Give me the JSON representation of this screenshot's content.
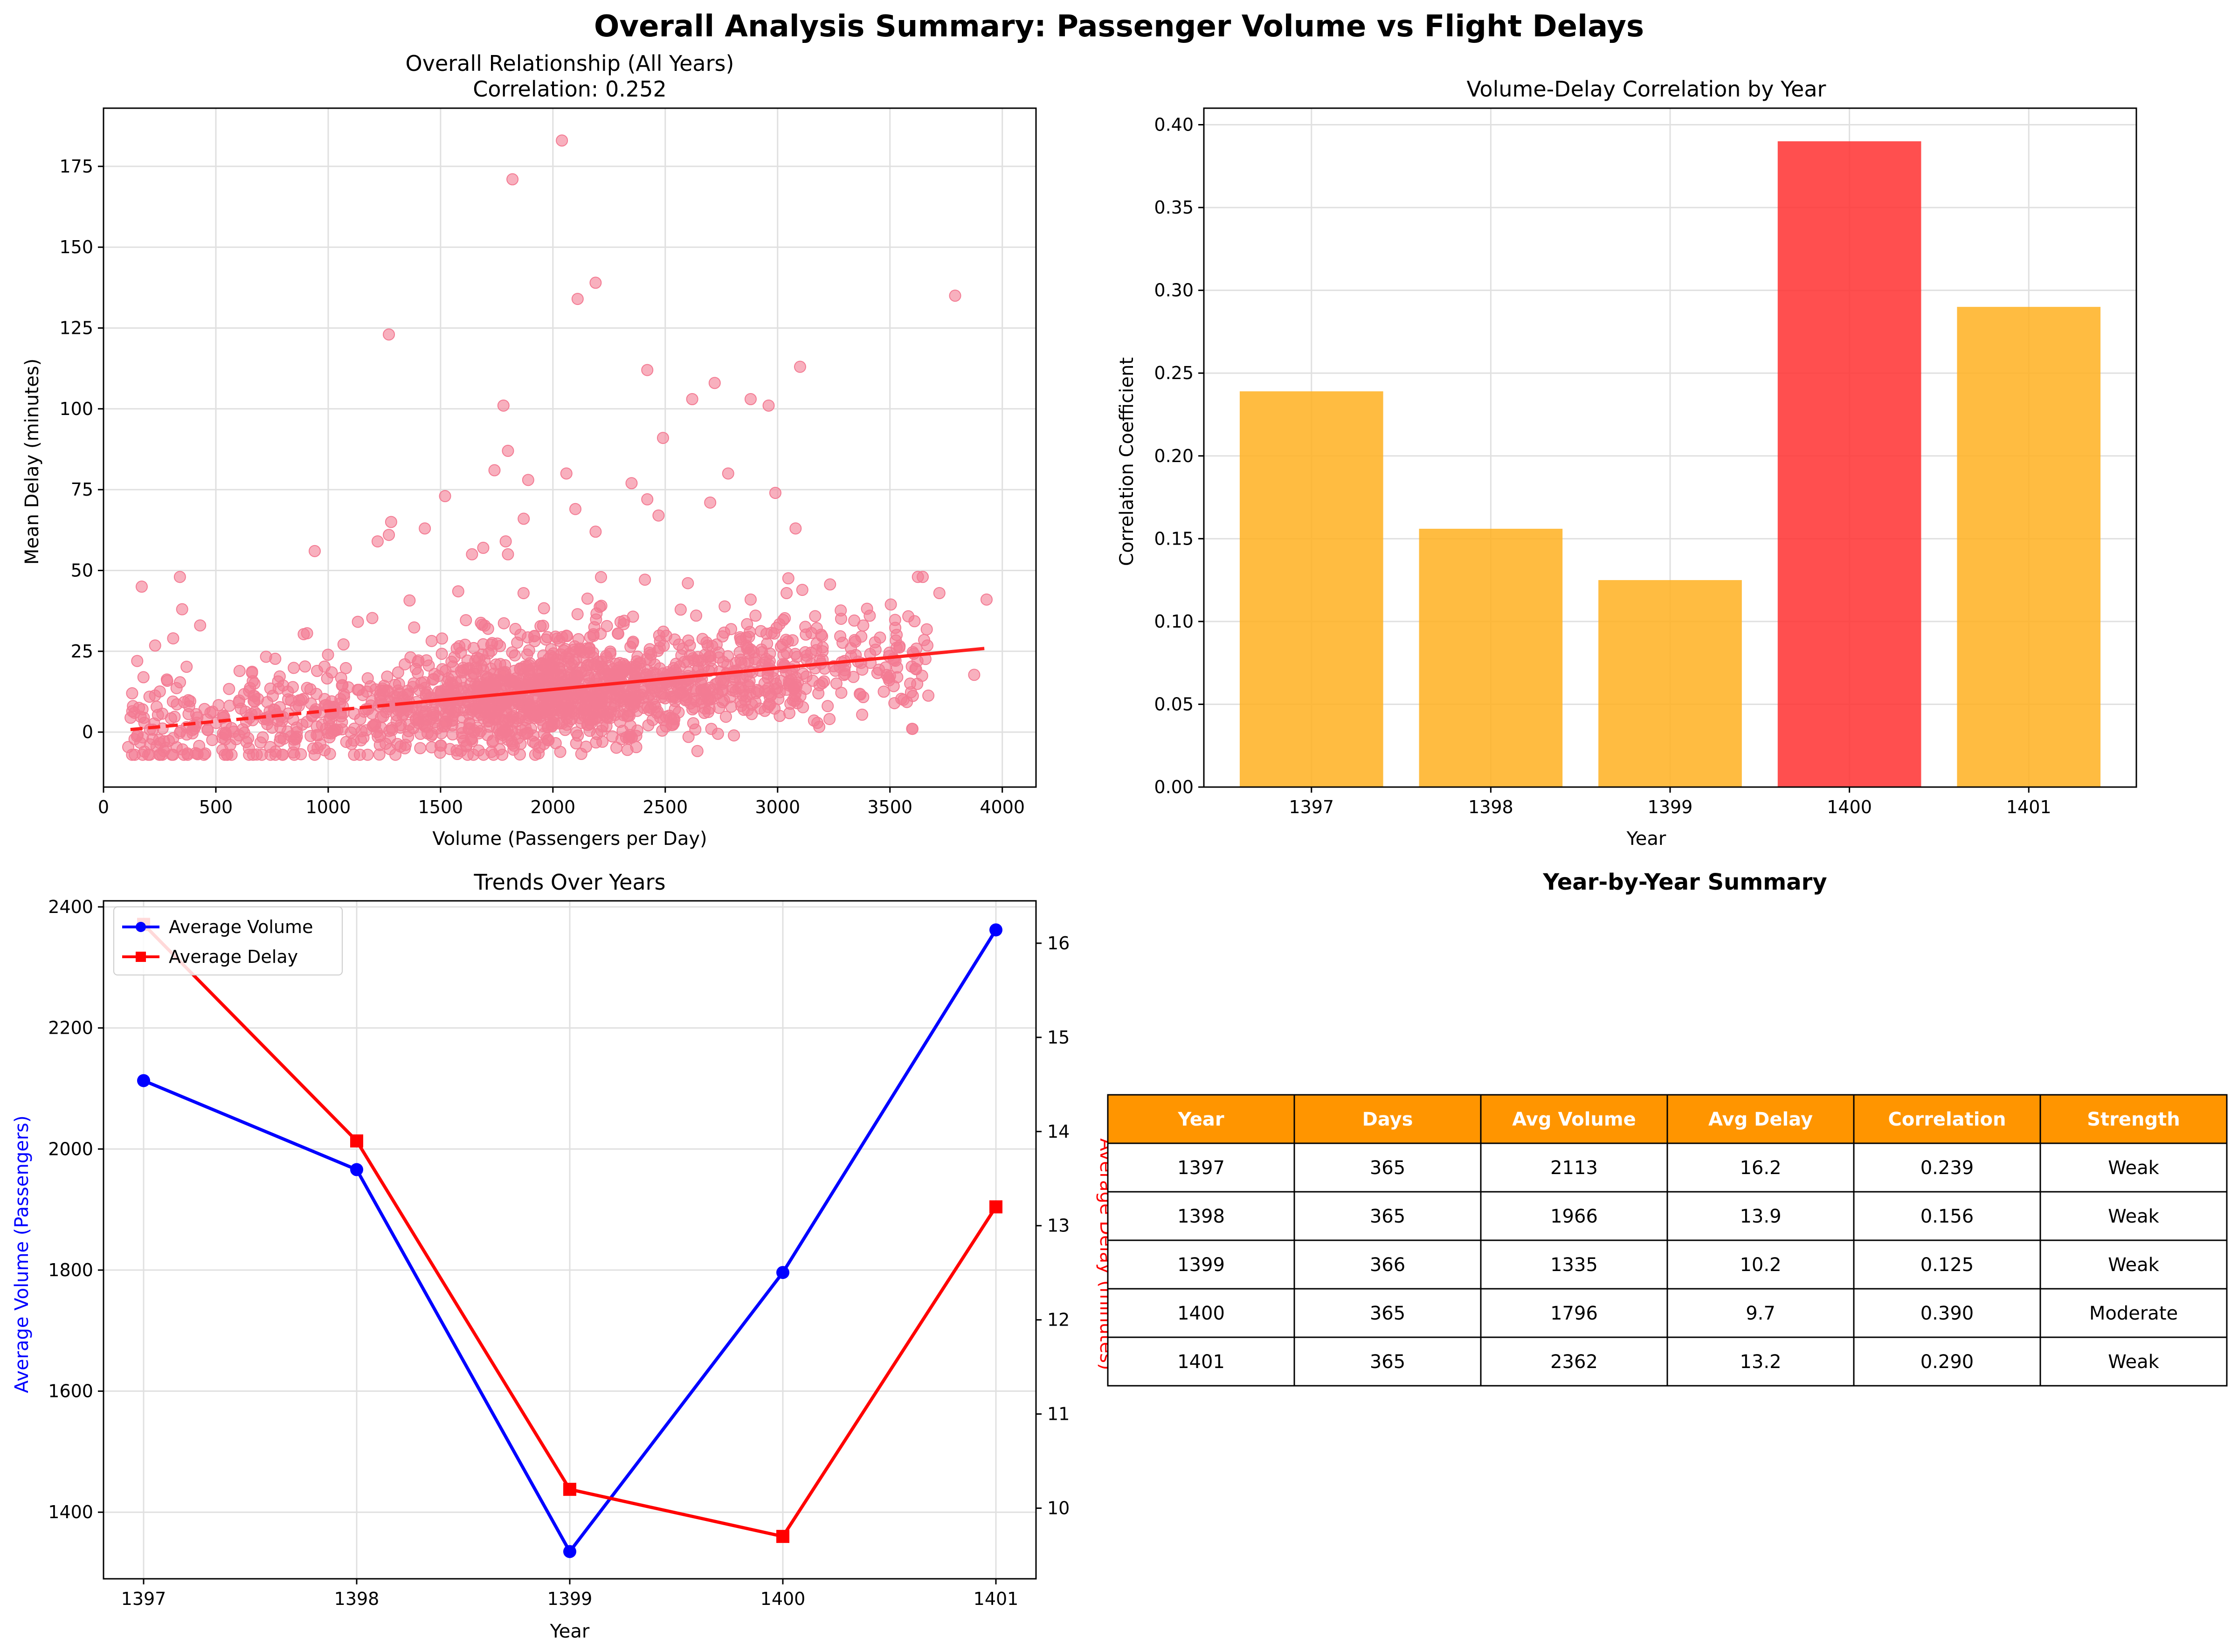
{
  "figure": {
    "title": "Overall Analysis Summary: Passenger Volume vs Flight Delays"
  },
  "colors": {
    "scatter": "#f37b93",
    "trend": "#ff2020",
    "bar_default": "#ffb020",
    "bar_highlight": "#ff3030",
    "volume_line": "#0000ff",
    "delay_line": "#ff0000",
    "table_header": "#ff9500",
    "grid": "#e0e0e0"
  },
  "chart_data": [
    {
      "id": "scatter",
      "type": "scatter",
      "title": "Overall Relationship (All Years)",
      "subtitle": "Correlation: 0.252",
      "xlabel": "Volume (Passengers per Day)",
      "ylabel": "Mean Delay (minutes)",
      "xlim": [
        0,
        4150
      ],
      "ylim": [
        -17,
        193
      ],
      "xticks": [
        0,
        500,
        1000,
        1500,
        2000,
        2500,
        3000,
        3500,
        4000
      ],
      "yticks": [
        0,
        25,
        50,
        75,
        100,
        125,
        150,
        175
      ],
      "grid": true,
      "point_count": 1826,
      "trendline": {
        "slope": 0.0066,
        "intercept": 0.0,
        "x_range": [
          120,
          3920
        ]
      },
      "outliers": [
        [
          2040,
          183
        ],
        [
          1820,
          171
        ],
        [
          2190,
          139
        ],
        [
          2110,
          134
        ],
        [
          3790,
          135
        ],
        [
          1270,
          123
        ],
        [
          3100,
          113
        ],
        [
          2420,
          112
        ],
        [
          2720,
          108
        ],
        [
          2620,
          103
        ],
        [
          2880,
          103
        ],
        [
          2960,
          101
        ],
        [
          1780,
          101
        ],
        [
          2490,
          91
        ],
        [
          1800,
          87
        ],
        [
          2780,
          80
        ],
        [
          2060,
          80
        ],
        [
          1740,
          81
        ],
        [
          1890,
          78
        ],
        [
          2350,
          77
        ],
        [
          1520,
          73
        ],
        [
          2990,
          74
        ],
        [
          2420,
          72
        ],
        [
          2700,
          71
        ],
        [
          2100,
          69
        ],
        [
          1870,
          66
        ],
        [
          2470,
          67
        ],
        [
          1280,
          65
        ],
        [
          3080,
          63
        ],
        [
          1430,
          63
        ],
        [
          2190,
          62
        ],
        [
          1270,
          61
        ],
        [
          1220,
          59
        ],
        [
          1790,
          59
        ],
        [
          1800,
          55
        ],
        [
          940,
          56
        ],
        [
          1690,
          57
        ],
        [
          1640,
          55
        ],
        [
          3720,
          43
        ],
        [
          3930,
          41
        ],
        [
          170,
          45
        ],
        [
          340,
          48
        ],
        [
          150,
          22
        ],
        [
          350,
          38
        ],
        [
          430,
          33
        ],
        [
          310,
          29
        ],
        [
          3410,
          36
        ],
        [
          3590,
          15
        ],
        [
          3600,
          1
        ],
        [
          3560,
          10
        ],
        [
          3480,
          20
        ],
        [
          3300,
          18
        ],
        [
          3200,
          25
        ],
        [
          3110,
          44
        ],
        [
          3040,
          43
        ],
        [
          2880,
          41
        ]
      ]
    },
    {
      "id": "bars",
      "type": "bar",
      "title": "Volume-Delay Correlation by Year",
      "xlabel": "Year",
      "ylabel": "Correlation Coefficient",
      "categories": [
        "1397",
        "1398",
        "1399",
        "1400",
        "1401"
      ],
      "values": [
        0.239,
        0.156,
        0.125,
        0.39,
        0.29
      ],
      "highlight": [
        "1400"
      ],
      "ylim": [
        0,
        0.41
      ],
      "yticks": [
        0.0,
        0.05,
        0.1,
        0.15,
        0.2,
        0.25,
        0.3,
        0.35,
        0.4
      ],
      "grid": true
    },
    {
      "id": "trends",
      "type": "line",
      "title": "Trends Over Years",
      "xlabel": "Year",
      "ylabel": "Average Volume (Passengers)",
      "ylabel_right": "Average Delay (minutes)",
      "x": [
        "1397",
        "1398",
        "1399",
        "1400",
        "1401"
      ],
      "ylim": [
        1290,
        2410
      ],
      "yticks": [
        1400,
        1600,
        1800,
        2000,
        2200,
        2400
      ],
      "ylim_right": [
        9.25,
        16.45
      ],
      "yticks_right": [
        10,
        11,
        12,
        13,
        14,
        15,
        16
      ],
      "legend_position": "upper left",
      "grid": true,
      "series": [
        {
          "name": "Average Volume",
          "axis": "left",
          "marker": "circle",
          "values": [
            2113,
            1966,
            1335,
            1796,
            2362
          ]
        },
        {
          "name": "Average Delay",
          "axis": "right",
          "marker": "square",
          "values": [
            16.2,
            13.9,
            10.2,
            9.7,
            13.2
          ]
        }
      ]
    },
    {
      "id": "summary_table",
      "type": "table",
      "title": "Year-by-Year Summary",
      "columns": [
        "Year",
        "Days",
        "Avg Volume",
        "Avg Delay",
        "Correlation",
        "Strength"
      ],
      "rows": [
        [
          "1397",
          "365",
          "2113",
          "16.2",
          "0.239",
          "Weak"
        ],
        [
          "1398",
          "365",
          "1966",
          "13.9",
          "0.156",
          "Weak"
        ],
        [
          "1399",
          "366",
          "1335",
          "10.2",
          "0.125",
          "Weak"
        ],
        [
          "1400",
          "365",
          "1796",
          "9.7",
          "0.390",
          "Moderate"
        ],
        [
          "1401",
          "365",
          "2362",
          "13.2",
          "0.290",
          "Weak"
        ]
      ]
    }
  ]
}
